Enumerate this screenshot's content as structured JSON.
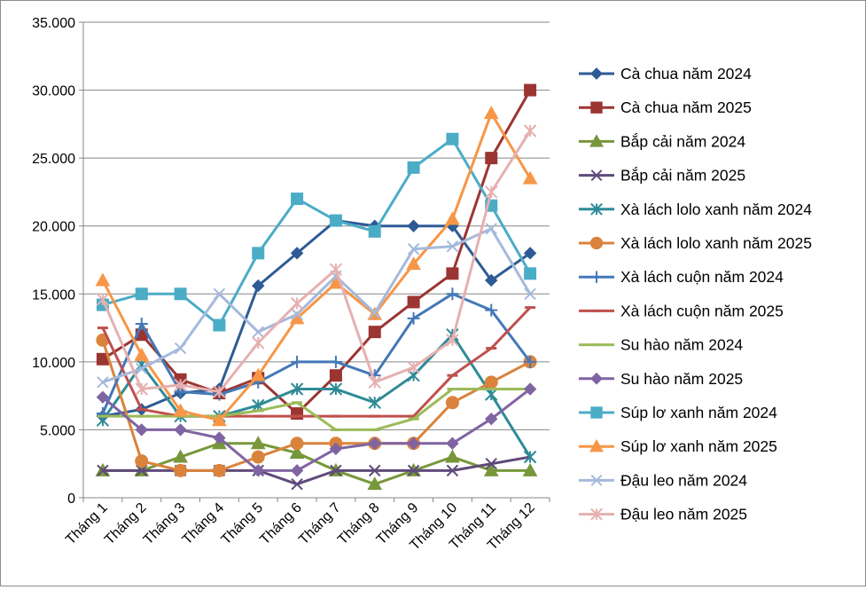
{
  "chart_data": {
    "type": "line",
    "categories": [
      "Tháng 1",
      "Tháng 2",
      "Tháng 3",
      "Tháng 4",
      "Tháng 5",
      "Tháng 6",
      "Tháng 7",
      "Tháng 8",
      "Tháng 9",
      "Tháng 10",
      "Tháng 11",
      "Tháng 12"
    ],
    "ylim": [
      0,
      35000
    ],
    "yticks": [
      0,
      5000,
      10000,
      15000,
      20000,
      25000,
      30000,
      35000
    ],
    "ytick_labels": [
      "0",
      "5.000",
      "10.000",
      "15.000",
      "20.000",
      "25.000",
      "30.000",
      "35.000"
    ],
    "grid": "horizontal",
    "legend_position": "right",
    "series": [
      {
        "name": "Cà chua năm 2024",
        "color": "#2e5b95",
        "marker": "diamond",
        "values": [
          6000,
          6500,
          7700,
          8000,
          15600,
          18000,
          20400,
          20000,
          20000,
          20000,
          16000,
          18000
        ]
      },
      {
        "name": "Cà chua năm 2025",
        "color": "#9b3532",
        "marker": "square",
        "values": [
          10200,
          12000,
          8700,
          7700,
          8800,
          6200,
          9000,
          12200,
          14400,
          16500,
          25000,
          30000
        ]
      },
      {
        "name": "Bắp cải năm 2024",
        "color": "#77973a",
        "marker": "triangle",
        "values": [
          2000,
          2000,
          3000,
          4000,
          4000,
          3300,
          2000,
          1000,
          2000,
          3000,
          2000,
          2000
        ]
      },
      {
        "name": "Bắp cải năm 2025",
        "color": "#5f4a7b",
        "marker": "x",
        "values": [
          2000,
          2000,
          2000,
          2000,
          2000,
          1000,
          2000,
          2000,
          2000,
          2000,
          2500,
          3000
        ]
      },
      {
        "name": "Xà lách lolo xanh năm 2024",
        "color": "#2e8b96",
        "marker": "asterisk",
        "values": [
          5700,
          9800,
          6000,
          6000,
          6800,
          8000,
          8000,
          7000,
          9000,
          12000,
          7600,
          3000
        ]
      },
      {
        "name": "Xà lách lolo xanh năm 2025",
        "color": "#da833c",
        "marker": "circle",
        "values": [
          11600,
          2700,
          2000,
          2000,
          3000,
          4000,
          4000,
          4000,
          4000,
          7000,
          8500,
          10000
        ]
      },
      {
        "name": "Xà lách cuộn năm 2024",
        "color": "#4478b8",
        "marker": "plus",
        "values": [
          6200,
          12800,
          7800,
          7600,
          8500,
          10000,
          10000,
          9000,
          13200,
          15000,
          13800,
          10000
        ]
      },
      {
        "name": "Xà lách cuộn năm 2025",
        "color": "#c0504d",
        "marker": "dash",
        "values": [
          12500,
          6500,
          6000,
          6000,
          6000,
          6000,
          6000,
          6000,
          6000,
          9000,
          11000,
          14000
        ]
      },
      {
        "name": "Su hào năm 2024",
        "color": "#9bbb59",
        "marker": "dash",
        "values": [
          6000,
          6000,
          6000,
          6000,
          6400,
          7000,
          5000,
          5000,
          5800,
          8000,
          8000,
          8000
        ]
      },
      {
        "name": "Su hào năm 2025",
        "color": "#8064a2",
        "marker": "diamond",
        "values": [
          7400,
          5000,
          5000,
          4400,
          2000,
          2000,
          3600,
          4000,
          4000,
          4000,
          5800,
          8000
        ]
      },
      {
        "name": "Súp lơ xanh năm 2024",
        "color": "#4bacc6",
        "marker": "square",
        "values": [
          14200,
          15000,
          15000,
          12700,
          18000,
          22000,
          20400,
          19600,
          24300,
          26400,
          21500,
          16500
        ]
      },
      {
        "name": "Súp lơ xanh năm 2025",
        "color": "#f79646",
        "marker": "triangle",
        "values": [
          16000,
          10500,
          6400,
          5700,
          9000,
          13200,
          15800,
          13500,
          17200,
          20500,
          28300,
          23500
        ]
      },
      {
        "name": "Đậu leo năm 2024",
        "color": "#a5b9dc",
        "marker": "x",
        "values": [
          8500,
          9500,
          11000,
          15000,
          12200,
          13500,
          16300,
          13600,
          18300,
          18500,
          19800,
          15000
        ]
      },
      {
        "name": "Đậu leo năm 2025",
        "color": "#e6b0b0",
        "marker": "asterisk",
        "values": [
          14600,
          8000,
          8300,
          7800,
          11400,
          14300,
          16800,
          8500,
          9600,
          11600,
          22500,
          27000
        ]
      }
    ]
  }
}
